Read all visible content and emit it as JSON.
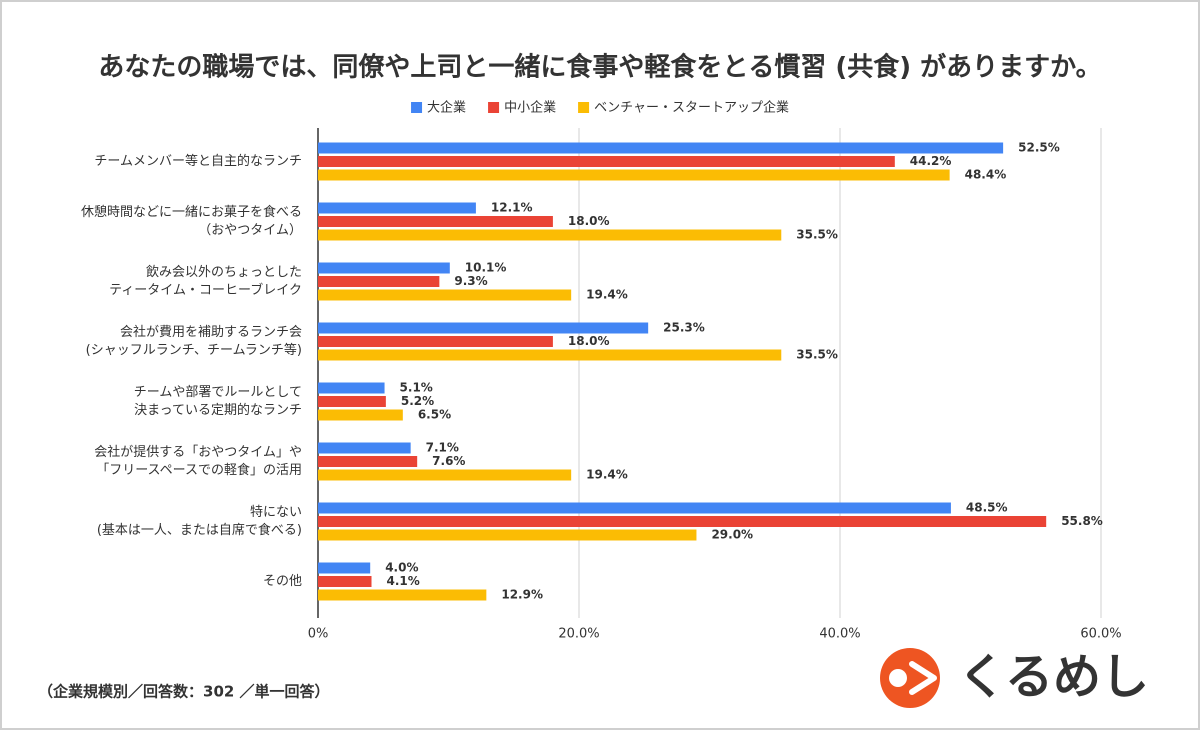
{
  "chart_data": {
    "type": "hbar",
    "title": "あなたの職場では、同僚や上司と一緒に食事や軽食をとる慣習 (共食) がありますか。",
    "categories": [
      [
        "チームメンバー等と自主的なランチ"
      ],
      [
        "休憩時間などに一緒にお菓子を食べる",
        "（おやつタイム）"
      ],
      [
        "飲み会以外のちょっとした",
        "ティータイム・コーヒーブレイク"
      ],
      [
        "会社が費用を補助するランチ会",
        "(シャッフルランチ、チームランチ等)"
      ],
      [
        "チームや部署でルールとして",
        "決まっている定期的なランチ"
      ],
      [
        "会社が提供する「おやつタイム」や",
        "「フリースペースでの軽食」の活用"
      ],
      [
        "特にない",
        "(基本は一人、または自席で食べる)"
      ],
      [
        "その他"
      ]
    ],
    "series": [
      {
        "name": "大企業",
        "color": "#4285f4",
        "values": [
          52.5,
          12.1,
          10.1,
          25.3,
          5.1,
          7.1,
          48.5,
          4.0
        ],
        "value_labels": [
          "52.5%",
          "12.1%",
          "10.1%",
          "25.3%",
          "5.1%",
          "7.1%",
          "48.5%",
          "4.0%"
        ]
      },
      {
        "name": "中小企業",
        "color": "#ea4335",
        "values": [
          44.2,
          18.0,
          9.3,
          18.0,
          5.2,
          7.6,
          55.8,
          4.1
        ],
        "value_labels": [
          "44.2%",
          "18.0%",
          "9.3%",
          "18.0%",
          "5.2%",
          "7.6%",
          "55.8%",
          "4.1%"
        ]
      },
      {
        "name": "ベンチャー・スタートアップ企業",
        "color": "#fbbc04",
        "values": [
          48.4,
          35.5,
          19.4,
          35.5,
          6.5,
          19.4,
          29.0,
          12.9
        ],
        "value_labels": [
          "48.4%",
          "35.5%",
          "19.4%",
          "35.5%",
          "6.5%",
          "19.4%",
          "29.0%",
          "12.9%"
        ]
      }
    ],
    "xlim": [
      0,
      60
    ],
    "xticks": [
      {
        "value": 0,
        "label": "0%"
      },
      {
        "value": 20,
        "label": "20.0%"
      },
      {
        "value": 40,
        "label": "40.0%"
      },
      {
        "value": 60,
        "label": "60.0%"
      }
    ],
    "grid": true,
    "legend": "top",
    "note": "（企業規模別／回答数：302 ／単一回答）",
    "logo": "くるめし"
  }
}
